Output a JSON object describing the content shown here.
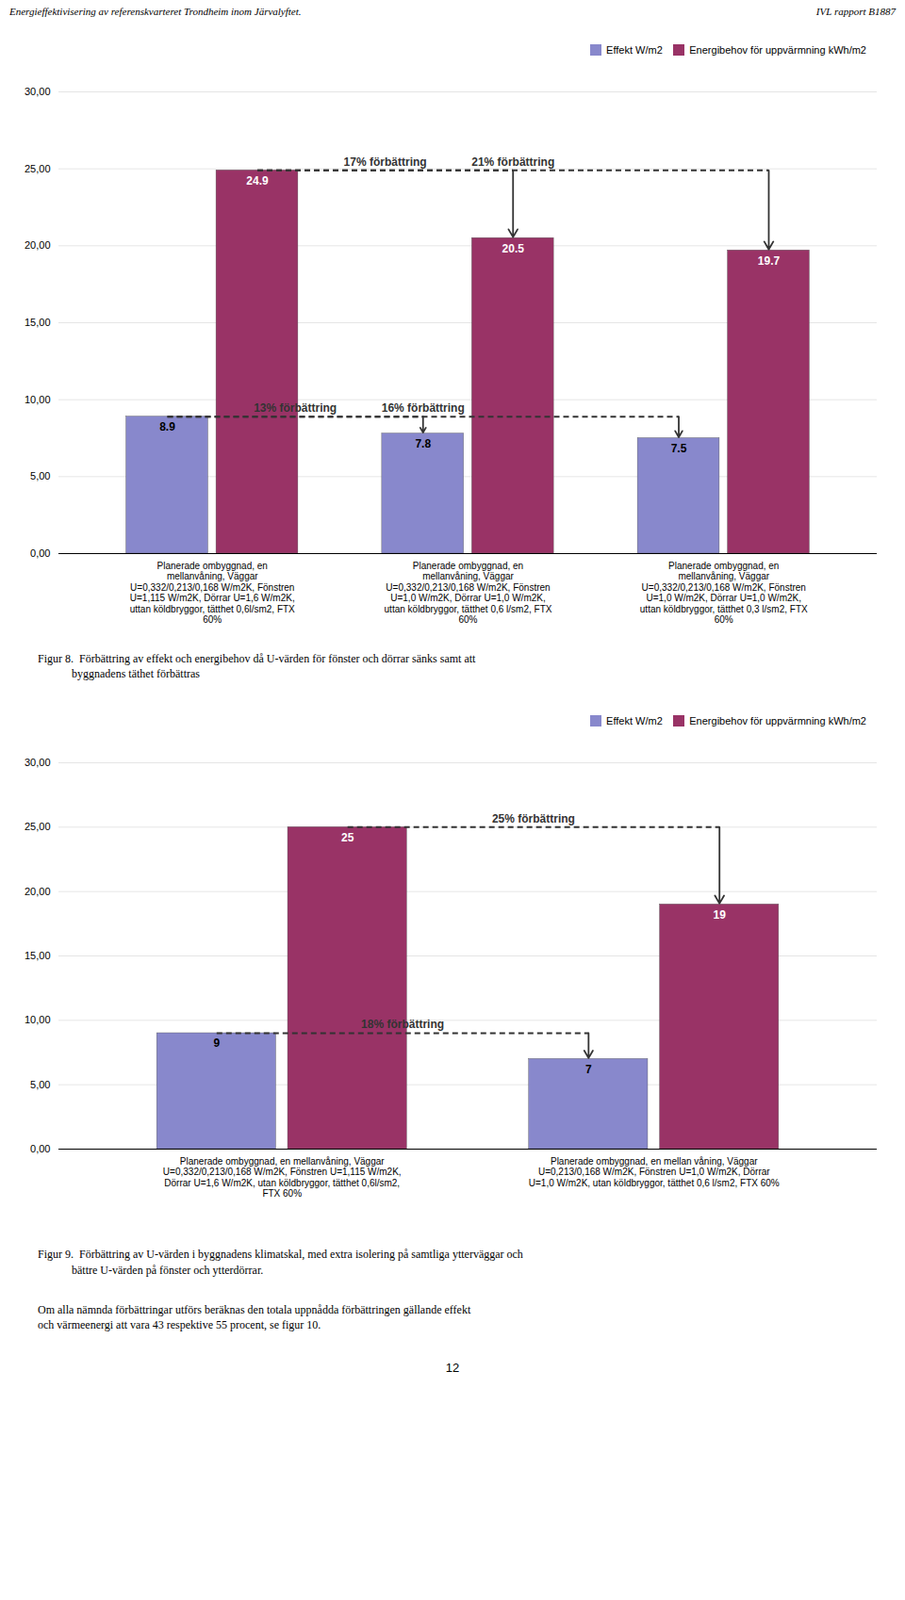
{
  "page": {
    "header_left": "Energieffektivisering av referenskvarteret Trondheim inom Järvalyftet.",
    "header_right": "IVL rapport  B1887",
    "page_number": "12",
    "text": "Om alla nämnda förbättringar utförs beräknas den totala uppnådda förbättringen gällande effekt\noch värmeenergi att vara 43 respektive 55 procent, se figur 10."
  },
  "chart_data": [
    {
      "type": "bar",
      "caption": "Figur 8.  Förbättring av effekt och energibehov då U-värden för fönster och dörrar sänks samt att\n            byggnadens täthet förbättras",
      "categories": [
        "Planerade ombyggnad, en\nmellanvåning, Väggar\nU=0,332/0,213/0,168 W/m2K, Fönstren\nU=1,115 W/m2K, Dörrar U=1,6 W/m2K,\nuttan köldbryggor, tätthet 0,6l/sm2, FTX\n60%",
        "Planerade ombyggnad, en\nmellanvåning, Väggar\nU=0,332/0,213/0,168 W/m2K, Fönstren\nU=1,0 W/m2K, Dörrar U=1,0 W/m2K,\nuttan köldbryggor, tätthet 0,6 l/sm2, FTX\n60%",
        "Planerade ombyggnad, en\nmellanvåning, Väggar\nU=0,332/0,213/0,168 W/m2K, Fönstren\nU=1,0 W/m2K, Dörrar U=1,0 W/m2K,\nuttan köldbryggor, tätthet 0,3 l/sm2, FTX\n60%"
      ],
      "series": [
        {
          "name": "Effekt W/m2",
          "color": "#8888cc",
          "values": [
            8.9,
            7.8,
            7.5
          ]
        },
        {
          "name": "Energibehov för uppvärmning kWh/m2",
          "color": "#993366",
          "values": [
            24.9,
            20.5,
            19.7
          ]
        }
      ],
      "ylim": [
        0,
        30
      ],
      "yticks": [
        {
          "value": 0,
          "label": "0,00"
        },
        {
          "value": 5,
          "label": "5,00"
        },
        {
          "value": 10,
          "label": "10,00"
        },
        {
          "value": 15,
          "label": "15,00"
        },
        {
          "value": 20,
          "label": "20,00"
        },
        {
          "value": 25,
          "label": "25,00"
        },
        {
          "value": 30,
          "label": "30,00"
        }
      ],
      "grid": true,
      "legend": "top right",
      "data_labels": true,
      "annotations": [
        {
          "text": "17% förbättring",
          "series": "Energibehov för uppvärmning kWh/m2",
          "from": 0,
          "to": 1,
          "y": 24.9
        },
        {
          "text": "21% förbättring",
          "series": "Energibehov för uppvärmning kWh/m2",
          "from": 0,
          "to": 2,
          "y": 24.9
        },
        {
          "text": "13% förbättring",
          "series": "Effekt W/m2",
          "from": 0,
          "to": 1,
          "y": 8.9
        },
        {
          "text": "16% förbättring",
          "series": "Effekt W/m2",
          "from": 0,
          "to": 2,
          "y": 8.9
        }
      ]
    },
    {
      "type": "bar",
      "caption": "Figur 9.  Förbättring av U-värden i byggnadens klimatskal, med extra isolering på samtliga ytterväggar och\n            bättre U-värden på fönster och ytterdörrar.",
      "categories": [
        "Planerade ombyggnad, en mellanvåning, Väggar\nU=0,332/0,213/0,168 W/m2K, Fönstren U=1,115 W/m2K,\nDörrar U=1,6 W/m2K, utan köldbryggor, tätthet 0,6l/sm2,\nFTX 60%",
        "Planerade ombyggnad, en mellan våning, Väggar\nU=0,213/0,168 W/m2K, Fönstren U=1,0 W/m2K, Dörrar\nU=1,0 W/m2K, utan köldbryggor, tätthet 0,6 l/sm2, FTX 60%"
      ],
      "series": [
        {
          "name": "Effekt W/m2",
          "color": "#8888cc",
          "values": [
            9,
            7
          ]
        },
        {
          "name": "Energibehov för uppvärmning kWh/m2",
          "color": "#993366",
          "values": [
            25,
            19
          ]
        }
      ],
      "ylim": [
        0,
        30
      ],
      "yticks": [
        {
          "value": 0,
          "label": "0,00"
        },
        {
          "value": 5,
          "label": "5,00"
        },
        {
          "value": 10,
          "label": "10,00"
        },
        {
          "value": 15,
          "label": "15,00"
        },
        {
          "value": 20,
          "label": "20,00"
        },
        {
          "value": 25,
          "label": "25,00"
        },
        {
          "value": 30,
          "label": "30,00"
        }
      ],
      "grid": true,
      "legend": "top right",
      "data_labels": true,
      "annotations": [
        {
          "text": "25% förbättring",
          "series": "Energibehov för uppvärmning kWh/m2",
          "from": 0,
          "to": 1,
          "y": 25
        },
        {
          "text": "18% förbättring",
          "series": "Effekt W/m2",
          "from": 0,
          "to": 1,
          "y": 9
        }
      ]
    }
  ]
}
